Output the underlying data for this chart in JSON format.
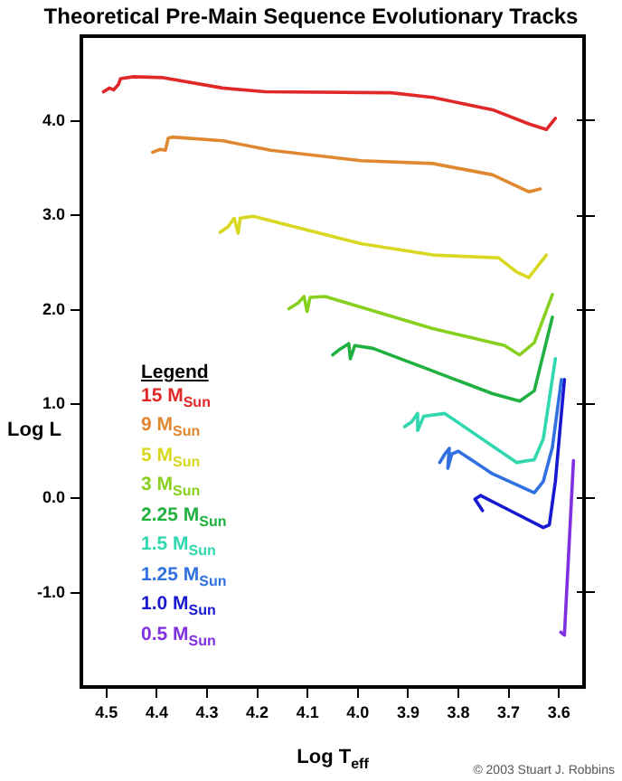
{
  "chart_data": {
    "type": "line",
    "title": "Theoretical Pre-Main Sequence Evolutionary Tracks",
    "xlabel": "Log T$_{eff}$",
    "ylabel": "Log L",
    "legend_title": "Legend",
    "legend": "left",
    "marker": "none",
    "line_style": "solid",
    "grid": false,
    "xlim": [
      4.55,
      3.55
    ],
    "xticks": [
      4.5,
      4.4,
      4.3,
      4.2,
      4.1,
      {
        "value": 4.0,
        "label": "4.0"
      },
      3.9,
      3.8,
      3.7,
      3.6
    ],
    "ylim": [
      -2.0,
      4.9
    ],
    "yticks": [
      {
        "value": -1.0,
        "label": "-1.0"
      },
      {
        "value": 0.0,
        "label": "0.0"
      },
      {
        "value": 1.0,
        "label": "1.0"
      },
      {
        "value": 2.0,
        "label": "2.0"
      },
      {
        "value": 3.0,
        "label": "3.0"
      },
      {
        "value": 4.0,
        "label": "4.0"
      }
    ],
    "annotations": [
      "© 2003 Stuart J. Robbins"
    ],
    "series": [
      {
        "name": "15 M$_{Sun}$",
        "color": "#e02828",
        "x": [
          4.506,
          4.494,
          4.486,
          4.476,
          4.472,
          4.446,
          4.387,
          4.269,
          4.184,
          3.934,
          3.851,
          3.732,
          3.66,
          3.625,
          3.607
        ],
        "values": [
          4.31,
          4.35,
          4.33,
          4.39,
          4.45,
          4.47,
          4.46,
          4.35,
          4.31,
          4.3,
          4.25,
          4.12,
          3.97,
          3.91,
          4.03
        ]
      },
      {
        "name": "9 M$_{Sun}$",
        "color": "#e08830",
        "x": [
          4.408,
          4.393,
          4.383,
          4.377,
          4.369,
          4.268,
          4.173,
          3.994,
          3.851,
          3.732,
          3.66,
          3.637
        ],
        "values": [
          3.67,
          3.7,
          3.69,
          3.82,
          3.83,
          3.79,
          3.69,
          3.58,
          3.55,
          3.43,
          3.25,
          3.28
        ]
      },
      {
        "name": "5 M$_{Sun}$",
        "color": "#d8d820",
        "x": [
          4.274,
          4.258,
          4.246,
          4.238,
          4.234,
          4.208,
          3.994,
          3.851,
          3.72,
          3.684,
          3.66,
          3.625
        ],
        "values": [
          2.82,
          2.88,
          2.97,
          2.81,
          2.97,
          2.99,
          2.7,
          2.58,
          2.55,
          2.4,
          2.34,
          2.58
        ]
      },
      {
        "name": "3 M$_{Sun}$",
        "color": "#88d020",
        "x": [
          4.137,
          4.119,
          4.107,
          4.101,
          4.095,
          4.065,
          3.851,
          3.708,
          3.678,
          3.649,
          3.613
        ],
        "values": [
          2.01,
          2.07,
          2.14,
          1.98,
          2.13,
          2.14,
          1.8,
          1.62,
          1.52,
          1.65,
          2.16
        ]
      },
      {
        "name": "2.25 M$_{Sun}$",
        "color": "#20b040",
        "x": [
          4.05,
          4.036,
          4.018,
          4.015,
          4.006,
          3.97,
          3.851,
          3.732,
          3.678,
          3.649,
          3.613
        ],
        "values": [
          1.52,
          1.58,
          1.64,
          1.48,
          1.62,
          1.59,
          1.35,
          1.11,
          1.03,
          1.14,
          1.92
        ]
      },
      {
        "name": "1.5 M$_{Sun}$",
        "color": "#30d8b0",
        "x": [
          3.907,
          3.893,
          3.881,
          3.881,
          3.869,
          3.827,
          3.684,
          3.649,
          3.631,
          3.607
        ],
        "values": [
          0.76,
          0.81,
          0.9,
          0.72,
          0.87,
          0.9,
          0.38,
          0.41,
          0.63,
          1.48
        ]
      },
      {
        "name": "1.25 M$_{Sun}$",
        "color": "#3070e0",
        "x": [
          3.837,
          3.827,
          3.818,
          3.821,
          3.813,
          3.8,
          3.732,
          3.649,
          3.631,
          3.613,
          3.595
        ],
        "values": [
          0.38,
          0.47,
          0.53,
          0.32,
          0.47,
          0.5,
          0.26,
          0.06,
          0.18,
          0.54,
          1.26
        ]
      },
      {
        "name": "1.0 M$_{Sun}$",
        "color": "#1818d0",
        "x": [
          3.752,
          3.767,
          3.756,
          3.708,
          3.631,
          3.619,
          3.607,
          3.589
        ],
        "values": [
          -0.13,
          -0.01,
          0.03,
          -0.1,
          -0.31,
          -0.28,
          0.18,
          1.26
        ]
      },
      {
        "name": "0.5 M$_{Sun}$",
        "color": "#8030e0",
        "x": [
          3.571,
          3.589,
          3.596
        ],
        "values": [
          0.4,
          -1.45,
          -1.42
        ]
      }
    ]
  }
}
